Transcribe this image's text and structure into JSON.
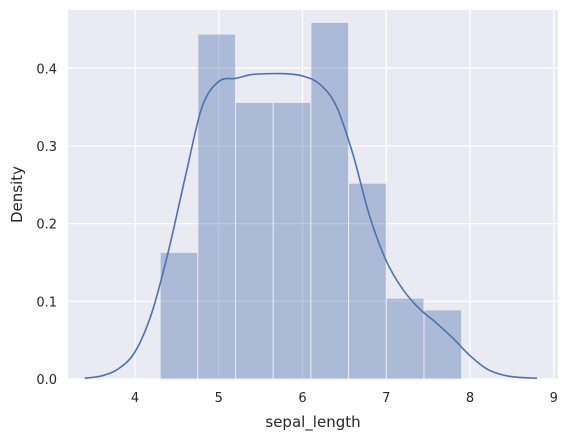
{
  "chart_data": {
    "type": "bar",
    "subtype": "histogram-with-kde",
    "title": "",
    "xlabel": "sepal_length",
    "ylabel": "Density",
    "xlim": [
      3.2,
      9.05
    ],
    "ylim": [
      0,
      0.475
    ],
    "xticks": [
      4,
      5,
      6,
      7,
      8,
      9
    ],
    "yticks": [
      0.0,
      0.1,
      0.2,
      0.3,
      0.4
    ],
    "xtick_labels": [
      "4",
      "5",
      "6",
      "7",
      "8",
      "9"
    ],
    "ytick_labels": [
      "0.0",
      "0.1",
      "0.2",
      "0.3",
      "0.4"
    ],
    "grid": true,
    "legend": "none",
    "histogram": {
      "bin_edges": [
        4.3,
        4.75,
        5.2,
        5.65,
        6.1,
        6.55,
        7.0,
        7.45,
        7.9
      ],
      "densities": [
        0.163,
        0.444,
        0.356,
        0.356,
        0.459,
        0.252,
        0.104,
        0.089
      ]
    },
    "kde": {
      "x": [
        3.4,
        3.6,
        3.8,
        4.0,
        4.2,
        4.4,
        4.6,
        4.8,
        5.0,
        5.2,
        5.4,
        5.6,
        5.8,
        6.0,
        6.2,
        6.4,
        6.6,
        6.8,
        7.0,
        7.2,
        7.4,
        7.6,
        7.8,
        8.0,
        8.2,
        8.4,
        8.6,
        8.8
      ],
      "y": [
        0.001,
        0.004,
        0.013,
        0.035,
        0.085,
        0.165,
        0.26,
        0.35,
        0.383,
        0.387,
        0.392,
        0.393,
        0.393,
        0.39,
        0.38,
        0.352,
        0.29,
        0.21,
        0.152,
        0.115,
        0.09,
        0.072,
        0.052,
        0.03,
        0.013,
        0.005,
        0.002,
        0.001
      ]
    },
    "colors": {
      "background": "#eaeaf2",
      "grid": "#ffffff",
      "bar_fill": "#4c72b0",
      "bar_fill_opacity": 0.4,
      "bar_edge": "#eaeaf2",
      "kde_line": "#4c72b0",
      "text": "#262626"
    }
  }
}
